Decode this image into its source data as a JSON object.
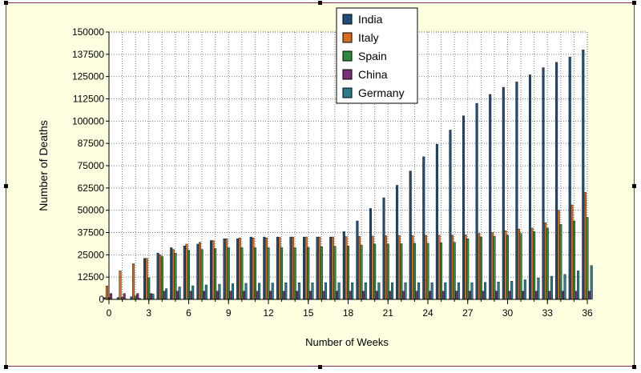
{
  "chart_data": {
    "type": "bar",
    "xlabel": "Number of Weeks",
    "ylabel": "Number of Deaths",
    "xlim": [
      0,
      36
    ],
    "ylim": [
      0,
      150000
    ],
    "x_ticks": [
      "0",
      "3",
      "6",
      "9",
      "12",
      "15",
      "18",
      "21",
      "24",
      "27",
      "30",
      "33",
      "36"
    ],
    "y_ticks": [
      "0",
      "12500",
      "25000",
      "37500",
      "50000",
      "62500",
      "75000",
      "87500",
      "100000",
      "112500",
      "125000",
      "137500",
      "150000"
    ],
    "grid": true,
    "legend_position": "top-right",
    "x": [
      0,
      1,
      2,
      3,
      4,
      5,
      6,
      7,
      8,
      9,
      10,
      11,
      12,
      13,
      14,
      15,
      16,
      17,
      18,
      19,
      20,
      21,
      22,
      23,
      24,
      25,
      26,
      27,
      28,
      29,
      30,
      31,
      32,
      33,
      34,
      35,
      36
    ],
    "series": [
      {
        "name": "India",
        "color": "#1f4e79",
        "values": [
          1000,
          1000,
          1500,
          23000,
          26000,
          29000,
          30000,
          31000,
          33000,
          34000,
          34000,
          35000,
          35000,
          35000,
          35000,
          35000,
          35000,
          35000,
          38000,
          44000,
          51000,
          57000,
          64000,
          72000,
          80000,
          87000,
          95000,
          103000,
          110000,
          115000,
          119000,
          122000,
          126000,
          130000,
          133000,
          136000,
          140000
        ]
      },
      {
        "name": "Italy",
        "color": "#d96b1c",
        "values": [
          7500,
          16000,
          20000,
          23000,
          25000,
          28000,
          31000,
          32000,
          33000,
          34000,
          34500,
          34500,
          34500,
          34800,
          35000,
          35000,
          35000,
          35000,
          35200,
          35300,
          35500,
          35700,
          35800,
          35900,
          35900,
          36000,
          36000,
          36200,
          37000,
          37500,
          38500,
          39500,
          40000,
          43000,
          50000,
          53000,
          60000
        ]
      },
      {
        "name": "Spain",
        "color": "#2e8b3e",
        "values": [
          1000,
          1200,
          2000,
          12000,
          24000,
          26000,
          27500,
          28000,
          28500,
          29000,
          29000,
          29000,
          29000,
          29000,
          29000,
          29200,
          29500,
          29800,
          30000,
          30500,
          31000,
          31000,
          31200,
          31500,
          31500,
          31800,
          32000,
          34000,
          35000,
          35500,
          36000,
          37000,
          38000,
          40000,
          42000,
          44000,
          46000
        ]
      },
      {
        "name": "China",
        "color": "#7b2f7b",
        "values": [
          3300,
          3300,
          3300,
          3300,
          4600,
          4600,
          4600,
          4600,
          4600,
          4600,
          4600,
          4600,
          4600,
          4600,
          4600,
          4600,
          4600,
          4600,
          4600,
          4600,
          4600,
          4600,
          4600,
          4600,
          4600,
          4600,
          4600,
          4600,
          4600,
          4600,
          4600,
          4600,
          4600,
          4600,
          4600,
          4600,
          4600
        ]
      },
      {
        "name": "Germany",
        "color": "#2b7c8c",
        "values": [
          0,
          200,
          500,
          3000,
          6000,
          7000,
          7600,
          8100,
          8500,
          8800,
          9000,
          9100,
          9200,
          9300,
          9300,
          9300,
          9400,
          9400,
          9400,
          9400,
          9400,
          9400,
          9400,
          9400,
          9400,
          9400,
          9400,
          9400,
          9500,
          9800,
          10200,
          11000,
          12000,
          13000,
          14000,
          16000,
          19000
        ]
      }
    ]
  }
}
